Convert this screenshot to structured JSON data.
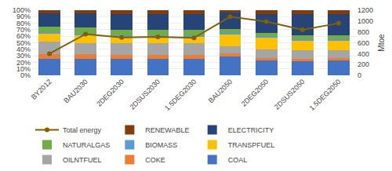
{
  "chart_data": {
    "type": "bar",
    "stacked": true,
    "categories": [
      "BY2012",
      "BAU2030",
      "2DEG2030",
      "2DSUS2030",
      "1.5DEG2030",
      "BAU2050",
      "2DEG2050",
      "2DSUS2050",
      "1.5DEG2050"
    ],
    "series": [
      {
        "name": "COAL",
        "color": "#4472C4",
        "values": [
          25,
          25,
          25,
          25,
          25,
          29,
          23,
          22,
          23
        ]
      },
      {
        "name": "COKE",
        "color": "#ED7D31",
        "values": [
          8,
          8,
          7,
          7,
          7,
          5,
          4,
          4,
          4
        ]
      },
      {
        "name": "OILNTFUEL",
        "color": "#A5A5A5",
        "values": [
          19,
          17,
          18,
          18,
          18,
          11,
          13,
          13,
          12
        ]
      },
      {
        "name": "TRANSPFUEL",
        "color": "#FFC000",
        "values": [
          12,
          12,
          10,
          10,
          10,
          18,
          18,
          15,
          15
        ]
      },
      {
        "name": "BIOMASS",
        "color": "#5B9BD5",
        "values": [
          2,
          2,
          2,
          2,
          2,
          2,
          2,
          2,
          2
        ]
      },
      {
        "name": "NATURALGAS",
        "color": "#70AD47",
        "values": [
          9,
          9,
          8,
          8,
          8,
          6,
          5,
          5,
          5
        ]
      },
      {
        "name": "ELECTRICITY",
        "color": "#264478",
        "values": [
          20,
          22,
          24,
          24,
          24,
          25,
          29,
          33,
          33
        ]
      },
      {
        "name": "RENEWABLE",
        "color": "#843C0C",
        "values": [
          5,
          5,
          6,
          6,
          6,
          4,
          6,
          6,
          6
        ]
      },
      {
        "name": "Total energy",
        "type": "line",
        "marker": "circle",
        "color": "#806000",
        "axis": "y2",
        "values": [
          400,
          760,
          700,
          710,
          690,
          1080,
          990,
          840,
          960
        ]
      }
    ],
    "ylim": [
      0,
      100
    ],
    "yticks": [
      {
        "value": 0,
        "label": "0%"
      },
      {
        "value": 10,
        "label": "10%"
      },
      {
        "value": 20,
        "label": "20%"
      },
      {
        "value": 30,
        "label": "30%"
      },
      {
        "value": 40,
        "label": "40%"
      },
      {
        "value": 50,
        "label": "50%"
      },
      {
        "value": 60,
        "label": "60%"
      },
      {
        "value": 70,
        "label": "70%"
      },
      {
        "value": 80,
        "label": "80%"
      },
      {
        "value": 90,
        "label": "90%"
      },
      {
        "value": 100,
        "label": "100%"
      }
    ],
    "y2lim": [
      0,
      1200
    ],
    "y2ticks": [
      0,
      200,
      400,
      600,
      800,
      1000,
      1200
    ],
    "y2label": "Mtoe",
    "grid": true,
    "legend": "bottom"
  }
}
